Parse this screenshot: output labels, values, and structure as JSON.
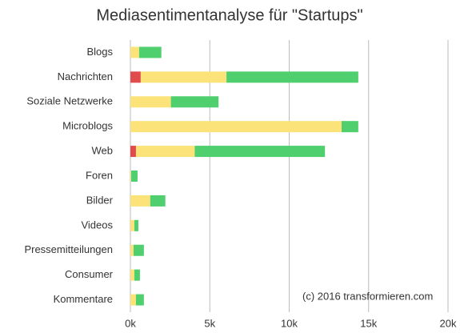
{
  "chart_data": {
    "type": "stacked-bar-horizontal",
    "title": "Mediasentimentanalyse für \"Startups\"",
    "annotation": "(c) 2016 transformieren.com",
    "categories": [
      "Blogs",
      "Nachrichten",
      "Soziale Netzwerke",
      "Microblogs",
      "Web",
      "Foren",
      "Bilder",
      "Videos",
      "Pressemitteilungen",
      "Consumer",
      "Kommentare"
    ],
    "series": [
      {
        "color": "#e04b4b",
        "values": [
          0,
          650,
          0,
          0,
          350,
          0,
          0,
          0,
          0,
          0,
          0
        ]
      },
      {
        "color": "#fbe37a",
        "values": [
          550,
          5400,
          2550,
          13300,
          3700,
          50,
          1250,
          250,
          200,
          250,
          350
        ]
      },
      {
        "color": "#4fcf6e",
        "values": [
          1400,
          8300,
          3000,
          1050,
          8200,
          400,
          950,
          250,
          650,
          350,
          500
        ]
      }
    ],
    "xlim": [
      0,
      20000
    ],
    "xticks": [
      {
        "value": 0,
        "label": "0k"
      },
      {
        "value": 5000,
        "label": "5k"
      },
      {
        "value": 10000,
        "label": "10k"
      },
      {
        "value": 15000,
        "label": "15k"
      },
      {
        "value": 20000,
        "label": "20k"
      }
    ],
    "grid": true
  }
}
